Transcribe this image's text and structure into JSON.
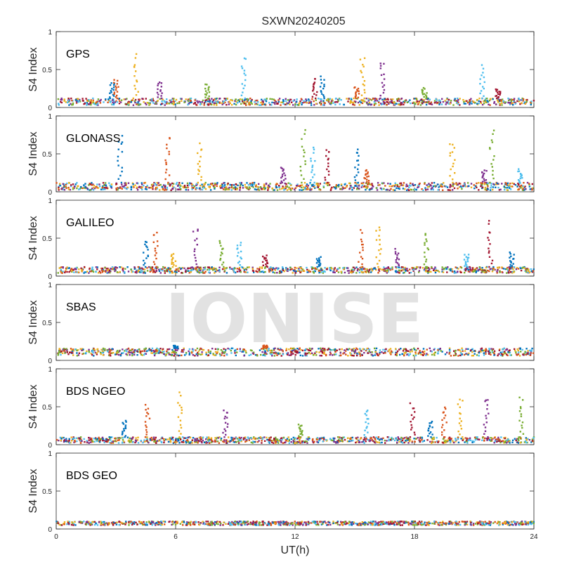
{
  "chart_data": {
    "type": "scatter",
    "title": "SXWN20240205",
    "xlabel": "UT(h)",
    "ylabel": "S4 Index",
    "xlim": [
      0,
      24
    ],
    "ylim": [
      0,
      1
    ],
    "xticks": [
      "0",
      "6",
      "12",
      "18",
      "24"
    ],
    "yticks": [
      "0",
      "0.5",
      "1"
    ],
    "watermark": "IONISE",
    "colors": [
      "#0072BD",
      "#D95319",
      "#EDB120",
      "#7E2F8E",
      "#77AC30",
      "#4DBEEE",
      "#A2142F"
    ],
    "panels": [
      {
        "label": "GPS",
        "baseline": [
          0.03,
          0.12
        ],
        "spikes": [
          [
            2.8,
            0.35
          ],
          [
            3.0,
            0.38
          ],
          [
            4.0,
            0.72
          ],
          [
            5.2,
            0.35
          ],
          [
            7.6,
            0.32
          ],
          [
            9.4,
            0.7
          ],
          [
            13.0,
            0.4
          ],
          [
            13.4,
            0.42
          ],
          [
            15.1,
            0.28
          ],
          [
            15.4,
            0.68
          ],
          [
            16.4,
            0.64
          ],
          [
            18.5,
            0.26
          ],
          [
            21.4,
            0.56
          ],
          [
            22.2,
            0.25
          ]
        ]
      },
      {
        "label": "GLONASS",
        "baseline": [
          0.02,
          0.12
        ],
        "spikes": [
          [
            3.2,
            0.8
          ],
          [
            5.6,
            0.76
          ],
          [
            7.2,
            0.64
          ],
          [
            11.4,
            0.35
          ],
          [
            12.4,
            0.82
          ],
          [
            12.9,
            0.6
          ],
          [
            13.6,
            0.62
          ],
          [
            15.1,
            0.6
          ],
          [
            15.6,
            0.3
          ],
          [
            19.9,
            0.71
          ],
          [
            21.5,
            0.3
          ],
          [
            21.9,
            0.85
          ],
          [
            23.3,
            0.3
          ]
        ]
      },
      {
        "label": "GALILEO",
        "baseline": [
          0.04,
          0.12
        ],
        "spikes": [
          [
            4.5,
            0.5
          ],
          [
            5.0,
            0.62
          ],
          [
            5.9,
            0.3
          ],
          [
            7.0,
            0.68
          ],
          [
            8.3,
            0.52
          ],
          [
            9.2,
            0.48
          ],
          [
            10.5,
            0.28
          ],
          [
            13.2,
            0.26
          ],
          [
            15.3,
            0.62
          ],
          [
            16.2,
            0.7
          ],
          [
            17.1,
            0.36
          ],
          [
            18.6,
            0.62
          ],
          [
            20.6,
            0.3
          ],
          [
            21.8,
            0.74
          ],
          [
            22.9,
            0.32
          ]
        ]
      },
      {
        "label": "SBAS",
        "baseline": [
          0.06,
          0.16
        ],
        "spikes": [
          [
            6.0,
            0.2
          ],
          [
            10.5,
            0.2
          ]
        ]
      },
      {
        "label": "BDS NGEO",
        "baseline": [
          0.02,
          0.1
        ],
        "spikes": [
          [
            3.4,
            0.34
          ],
          [
            4.6,
            0.56
          ],
          [
            6.2,
            0.7
          ],
          [
            8.5,
            0.5
          ],
          [
            12.3,
            0.28
          ],
          [
            15.6,
            0.5
          ],
          [
            17.9,
            0.55
          ],
          [
            18.8,
            0.32
          ],
          [
            19.5,
            0.52
          ],
          [
            20.3,
            0.63
          ],
          [
            21.6,
            0.66
          ],
          [
            23.4,
            0.64
          ]
        ]
      },
      {
        "label": "BDS GEO",
        "baseline": [
          0.05,
          0.1
        ],
        "spikes": []
      }
    ]
  }
}
